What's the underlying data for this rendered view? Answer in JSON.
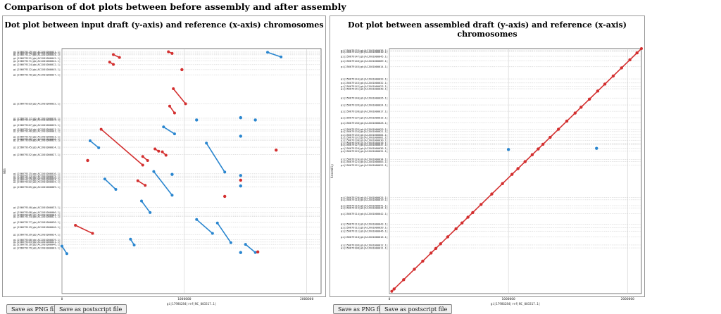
{
  "page": {
    "title": "Comparison of dot plots between before assembly and after assembly"
  },
  "buttons": {
    "save_png": "Save as PNG file",
    "save_ps": "Save as postscript file"
  },
  "colors": {
    "forward": "#d32f2f",
    "reverse": "#2a86cf",
    "grid": "#c4c4c4",
    "axis": "#555555"
  },
  "chart_data": [
    {
      "type": "scatter",
      "title": "Dot plot between input draft (y-axis) and reference (x-axis) chromosomes",
      "xlabel": "gi|17986284|ref|NC_003317.1|",
      "ylabel": "WGS",
      "xlim": [
        0,
        2117000
      ],
      "ylim": [
        0,
        2117000
      ],
      "x_ticks": [
        0,
        1000000,
        2000000
      ],
      "x_tick_labels": [
        "0",
        "1000000",
        "2000000"
      ],
      "grid": true,
      "contig_labels": [
        {
          "y": 2087000,
          "text": "gi|256679129|gb|ACJX01000031.1|"
        },
        {
          "y": 2075000,
          "text": "gi|256679130|gb|ACJX01000030.1|"
        },
        {
          "y": 2063000,
          "text": "gi|256679127|gb|ACJX01000044.1|"
        },
        {
          "y": 2034000,
          "text": "gi|256679121|gb|ACJX01000042.1|"
        },
        {
          "y": 2010000,
          "text": "gi|256679171|gb|ACJX01000042.1|"
        },
        {
          "y": 1978000,
          "text": "gi|256679124|gb|ACJX01000012.1|"
        },
        {
          "y": 1935000,
          "text": "gi|256679112|gb|ACJX01000045.1|"
        },
        {
          "y": 1890000,
          "text": "gi|256679170|gb|ACJX01000037.1|"
        },
        {
          "y": 1640000,
          "text": "gi|256679103|gb|ACJX01000032.1|"
        },
        {
          "y": 1515000,
          "text": "gi|256679117|gb|ACJX01000018.1|"
        },
        {
          "y": 1500000,
          "text": "gi|256679137|gb|ACJX01000015.1|"
        },
        {
          "y": 1455000,
          "text": "gi|256679107|gb|ACJX01000025.1|"
        },
        {
          "y": 1420000,
          "text": "gi|256679104|gb|ACJX01000011.1|"
        },
        {
          "y": 1405000,
          "text": "gi|256679146|gb|ACJX01000001.1|"
        },
        {
          "y": 1355000,
          "text": "gi|256679142|gb|ACJX01000023.1|"
        },
        {
          "y": 1335000,
          "text": "gi|256679169|gb|ACJX01000026.1|"
        },
        {
          "y": 1325000,
          "text": "gi|256679109|gb|ACJX01000039.1|"
        },
        {
          "y": 1265000,
          "text": "gi|256679145|gb|ACJX01000014.1|"
        },
        {
          "y": 1200000,
          "text": "gi|256679152|gb|ACJX01000027.1|"
        },
        {
          "y": 1035000,
          "text": "gi|256679115|gb|ACJX01000016.1|"
        },
        {
          "y": 1015000,
          "text": "gi|256679113|gb|ACJX01000019.1|"
        },
        {
          "y": 1000000,
          "text": "gi|256679158|gb|ACJX01000020.1|"
        },
        {
          "y": 985000,
          "text": "gi|256679123|gb|ACJX01000034.1|"
        },
        {
          "y": 965000,
          "text": "gi|256679102|gb|ACJX01000035.1|"
        },
        {
          "y": 920000,
          "text": "gi|256679105|gb|ACJX01000009.1|"
        },
        {
          "y": 745000,
          "text": "gi|256679140|gb|ACJX01000033.1|"
        },
        {
          "y": 700000,
          "text": "gi|256679108|gb|ACJX01000006.1|"
        },
        {
          "y": 680000,
          "text": "gi|256679106|gb|ACJX01000004.1|"
        },
        {
          "y": 665000,
          "text": "gi|256679134|gb|ACJX01000021.1|"
        },
        {
          "y": 615000,
          "text": "gi|256679177|gb|ACJX01000036.1|"
        },
        {
          "y": 575000,
          "text": "gi|256679119|gb|ACJX01000040.1|"
        },
        {
          "y": 510000,
          "text": "gi|256679139|gb|ACJX01000024.1|"
        },
        {
          "y": 465000,
          "text": "gi|256679100|gb|ACJX01000029.1|"
        },
        {
          "y": 445000,
          "text": "gi|256679163|gb|ACJX01000041.1|"
        },
        {
          "y": 425000,
          "text": "gi|256679116|gb|ACJX01000046.1|"
        },
        {
          "y": 395000,
          "text": "gi|256679179|gb|ACJX01000003.1|"
        }
      ],
      "series": [
        {
          "segments": [
            {
              "x": [
                1680000,
                1790000
              ],
              "y": [
                2085000,
                2045000
              ]
            },
            {
              "x": [
                830000,
                920000
              ],
              "y": [
                1440000,
                1380000
              ]
            },
            {
              "x": [
                230000,
                300000
              ],
              "y": [
                1320000,
                1260000
              ]
            },
            {
              "x": [
                1180000,
                1330000
              ],
              "y": [
                1300000,
                1050000
              ]
            },
            {
              "x": [
                750000,
                900000
              ],
              "y": [
                1055000,
                850000
              ]
            },
            {
              "x": [
                350000,
                440000
              ],
              "y": [
                990000,
                900000
              ]
            },
            {
              "x": [
                650000,
                720000
              ],
              "y": [
                800000,
                700000
              ]
            },
            {
              "x": [
                1100000,
                1230000
              ],
              "y": [
                640000,
                520000
              ]
            },
            {
              "x": [
                1270000,
                1380000
              ],
              "y": [
                610000,
                440000
              ]
            },
            {
              "x": [
                560000,
                590000
              ],
              "y": [
                470000,
                420000
              ]
            },
            {
              "x": [
                1500000,
                1580000
              ],
              "y": [
                425000,
                355000
              ]
            },
            {
              "x": [
                0,
                40000
              ],
              "y": [
                410000,
                345000
              ]
            }
          ],
          "points": [
            {
              "x": 1460000,
              "y": 1520000
            },
            {
              "x": 1100000,
              "y": 1500000
            },
            {
              "x": 1580000,
              "y": 1500000
            },
            {
              "x": 1460000,
              "y": 1360000
            },
            {
              "x": 900000,
              "y": 1030000
            },
            {
              "x": 1460000,
              "y": 1020000
            },
            {
              "x": 1460000,
              "y": 930000
            },
            {
              "x": 1460000,
              "y": 355000
            }
          ]
        },
        {
          "segments": [
            {
              "x": [
                870000,
                900000
              ],
              "y": [
                2090000,
                2075000
              ]
            },
            {
              "x": [
                420000,
                470000
              ],
              "y": [
                2065000,
                2040000
              ]
            },
            {
              "x": [
                390000,
                420000
              ],
              "y": [
                2000000,
                1980000
              ]
            },
            {
              "x": [
                910000,
                1010000
              ],
              "y": [
                1770000,
                1640000
              ]
            },
            {
              "x": [
                880000,
                920000
              ],
              "y": [
                1620000,
                1560000
              ]
            },
            {
              "x": [
                320000,
                660000
              ],
              "y": [
                1420000,
                1110000
              ]
            },
            {
              "x": [
                760000,
                790000
              ],
              "y": [
                1250000,
                1230000
              ]
            },
            {
              "x": [
                820000,
                850000
              ],
              "y": [
                1225000,
                1195000
              ]
            },
            {
              "x": [
                660000,
                700000
              ],
              "y": [
                1185000,
                1150000
              ]
            },
            {
              "x": [
                620000,
                680000
              ],
              "y": [
                975000,
                935000
              ]
            },
            {
              "x": [
                110000,
                250000
              ],
              "y": [
                590000,
                520000
              ]
            }
          ],
          "points": [
            {
              "x": 1750000,
              "y": 1240000
            },
            {
              "x": 1330000,
              "y": 840000
            },
            {
              "x": 1600000,
              "y": 360000
            },
            {
              "x": 980000,
              "y": 1935000
            },
            {
              "x": 210000,
              "y": 1150000
            },
            {
              "x": 1460000,
              "y": 980000
            }
          ]
        }
      ]
    },
    {
      "type": "scatter",
      "title": "Dot plot between assembled draft (y-axis) and reference (x-axis) chromosomes",
      "xlabel": "gi|17986284|ref|NC_003317.1|",
      "ylabel": "Assembly",
      "xlim": [
        0,
        2117000
      ],
      "ylim": [
        0,
        2117000
      ],
      "x_ticks": [
        0,
        1000000,
        2000000
      ],
      "x_tick_labels": [
        "0",
        "1000000",
        "2000000"
      ],
      "grid": true,
      "contig_labels": [
        {
          "y": 2100000,
          "text": "gi|256679133|gb|ACJX01000038.1|"
        },
        {
          "y": 2089000,
          "text": "gi|256679132|gb|ACJX01000010.1|"
        },
        {
          "y": 2050000,
          "text": "gi|256679147|gb|ACJX01000045.1|"
        },
        {
          "y": 2010000,
          "text": "gi|256679146|gb|ACJX01000009.1|"
        },
        {
          "y": 1960000,
          "text": "gi|256679145|gb|ACJX01000014.1|"
        },
        {
          "y": 1855000,
          "text": "gi|256679144|gb|ACJX01000033.1|"
        },
        {
          "y": 1820000,
          "text": "gi|256679143|gb|ACJX01000032.1|"
        },
        {
          "y": 1790000,
          "text": "gi|256679142|gb|ACJX01000023.1|"
        },
        {
          "y": 1770000,
          "text": "gi|256679141|gb|ACJX01000040.1|"
        },
        {
          "y": 1690000,
          "text": "gi|256679140|gb|ACJX01000026.1|"
        },
        {
          "y": 1630000,
          "text": "gi|256679139|gb|ACJX01000024.1|"
        },
        {
          "y": 1575000,
          "text": "gi|256679138|gb|ACJX01000017.1|"
        },
        {
          "y": 1520000,
          "text": "gi|256679137|gb|ACJX01000015.1|"
        },
        {
          "y": 1475000,
          "text": "gi|256679136|gb|ACJX01000028.1|"
        },
        {
          "y": 1420000,
          "text": "gi|256679135|gb|ACJX01000029.1|"
        },
        {
          "y": 1400000,
          "text": "gi|256679134|gb|ACJX01000021.1|"
        },
        {
          "y": 1370000,
          "text": "gi|256679133|gb|ACJX01000004.1|"
        },
        {
          "y": 1350000,
          "text": "gi|256679131|gb|ACJX01000001.1|"
        },
        {
          "y": 1325000,
          "text": "gi|256679130|gb|ACJX01000030.1|"
        },
        {
          "y": 1300000,
          "text": "gi|256679128|gb|ACJX01000018.1|"
        },
        {
          "y": 1285000,
          "text": "gi|256679127|gb|ACJX01000037.1|"
        },
        {
          "y": 1255000,
          "text": "gi|256679126|gb|ACJX01000036.1|"
        },
        {
          "y": 1230000,
          "text": "gi|256679125|gb|ACJX01000031.1|"
        },
        {
          "y": 1160000,
          "text": "gi|256679124|gb|ACJX01000034.1|"
        },
        {
          "y": 1140000,
          "text": "gi|256679123|gb|ACJX01000003.1|"
        },
        {
          "y": 1110000,
          "text": "gi|256679121|gb|ACJX01000022.1|"
        },
        {
          "y": 830000,
          "text": "gi|256679120|gb|ACJX01000025.1|"
        },
        {
          "y": 810000,
          "text": "gi|256679118|gb|ACJX01000019.1|"
        },
        {
          "y": 760000,
          "text": "gi|256679116|gb|ACJX01000041.1|"
        },
        {
          "y": 740000,
          "text": "gi|256679115|gb|ACJX01000044.1|"
        },
        {
          "y": 690000,
          "text": "gi|256679114|gb|ACJX01000042.1|"
        },
        {
          "y": 600000,
          "text": "gi|256679113|gb|ACJX01000043.1|"
        },
        {
          "y": 570000,
          "text": "gi|256679112|gb|ACJX01000039.1|"
        },
        {
          "y": 540000,
          "text": "gi|256679111|gb|ACJX01000046.1|"
        },
        {
          "y": 490000,
          "text": "gi|256679110|gb|ACJX01000016.1|"
        },
        {
          "y": 420000,
          "text": "gi|256679109|gb|ACJX01000012.1|"
        },
        {
          "y": 395000,
          "text": "gi|256679108|gb|ACJX01000011.1|"
        }
      ],
      "series": [
        {
          "segments": [],
          "points": [
            {
              "x": 1000000,
              "y": 1245000
            },
            {
              "x": 1740000,
              "y": 1255000
            }
          ]
        },
        {
          "segments": [
            {
              "x": [
                20000,
                2117000
              ],
              "y": [
                20000,
                2117000
              ]
            }
          ],
          "points": [
            {
              "x": 40000,
              "y": 40000
            },
            {
              "x": 120000,
              "y": 120000
            },
            {
              "x": 210000,
              "y": 210000
            },
            {
              "x": 280000,
              "y": 280000
            },
            {
              "x": 350000,
              "y": 350000
            },
            {
              "x": 390000,
              "y": 390000
            },
            {
              "x": 430000,
              "y": 430000
            },
            {
              "x": 490000,
              "y": 490000
            },
            {
              "x": 560000,
              "y": 560000
            },
            {
              "x": 610000,
              "y": 610000
            },
            {
              "x": 660000,
              "y": 660000
            },
            {
              "x": 700000,
              "y": 700000
            },
            {
              "x": 770000,
              "y": 770000
            },
            {
              "x": 860000,
              "y": 860000
            },
            {
              "x": 950000,
              "y": 950000
            },
            {
              "x": 1030000,
              "y": 1030000
            },
            {
              "x": 1080000,
              "y": 1080000
            },
            {
              "x": 1140000,
              "y": 1140000
            },
            {
              "x": 1200000,
              "y": 1200000
            },
            {
              "x": 1250000,
              "y": 1250000
            },
            {
              "x": 1290000,
              "y": 1290000
            },
            {
              "x": 1350000,
              "y": 1350000
            },
            {
              "x": 1420000,
              "y": 1420000
            },
            {
              "x": 1490000,
              "y": 1490000
            },
            {
              "x": 1560000,
              "y": 1560000
            },
            {
              "x": 1610000,
              "y": 1610000
            },
            {
              "x": 1680000,
              "y": 1680000
            },
            {
              "x": 1750000,
              "y": 1750000
            },
            {
              "x": 1810000,
              "y": 1810000
            },
            {
              "x": 1880000,
              "y": 1880000
            },
            {
              "x": 1950000,
              "y": 1950000
            },
            {
              "x": 2020000,
              "y": 2020000
            },
            {
              "x": 2080000,
              "y": 2080000
            }
          ]
        }
      ]
    }
  ]
}
